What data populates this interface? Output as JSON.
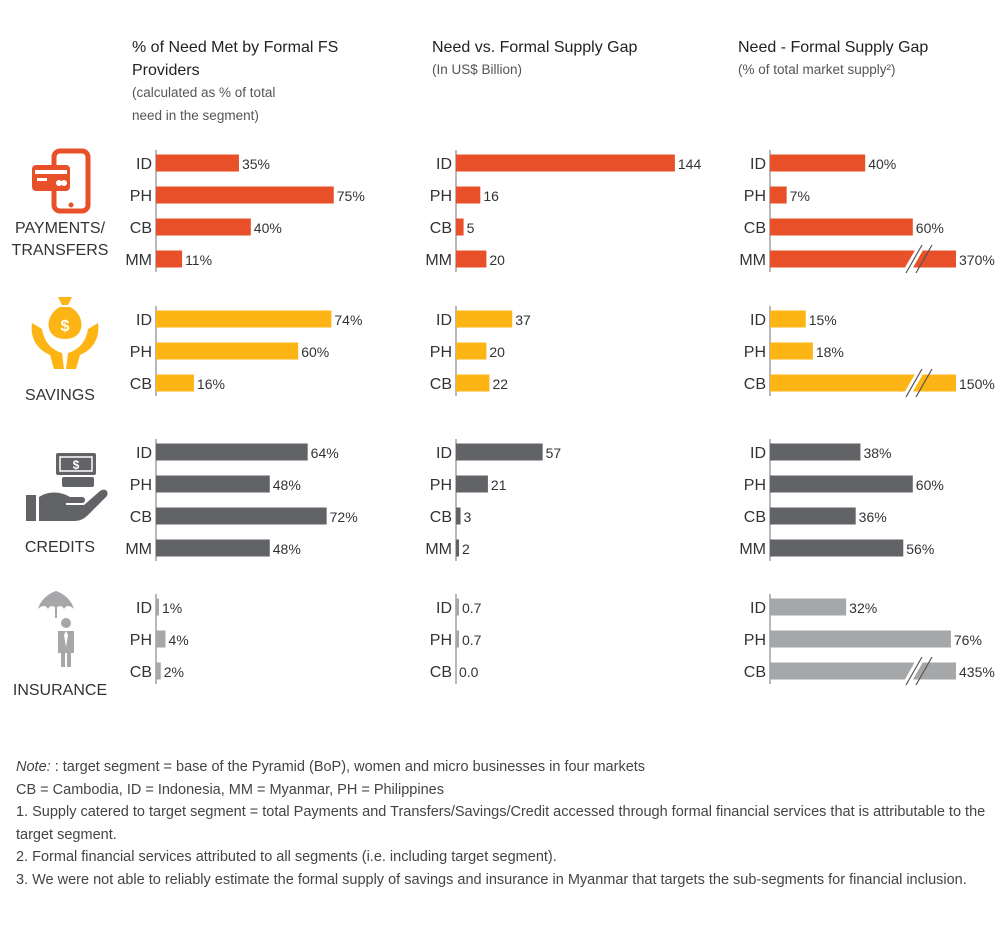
{
  "colors": {
    "payments": "#E8502A",
    "savings": "#FDB515",
    "credits": "#626366",
    "insurance": "#A6A7A9",
    "axis": "#888888",
    "break": "#ffffff"
  },
  "icons": {
    "payments": "mobile-payment-icon",
    "savings": "money-bag-hands-icon",
    "credits": "cash-hand-icon",
    "insurance": "umbrella-person-icon"
  },
  "columns": [
    {
      "title_lines": [
        "% of Need Met by Formal FS",
        "Providers"
      ],
      "subtitle_lines": [
        "(calculated as % of total",
        "need in the segment)"
      ]
    },
    {
      "title_lines": [
        "Need vs. Formal Supply Gap"
      ],
      "subtitle_lines": [
        "(In US$ Billion)"
      ]
    },
    {
      "title_lines": [
        "Need - Formal Supply Gap"
      ],
      "subtitle_lines": [
        "(% of total market supply²)"
      ]
    }
  ],
  "chart_data": {
    "type": "bar",
    "orientation": "horizontal",
    "legend": "none",
    "grid": false,
    "panels": [
      {
        "id": "payments",
        "category_lines": [
          "PAYMENTS/",
          "TRANSFERS"
        ],
        "rows": [
          "ID",
          "PH",
          "CB",
          "MM"
        ],
        "series": [
          {
            "values": [
              35,
              75,
              40,
              11
            ],
            "labels": [
              "35%",
              "75%",
              "40%",
              "11%"
            ]
          },
          {
            "values": [
              144,
              16,
              5,
              20
            ],
            "labels": [
              "144",
              "16",
              "5",
              "20"
            ]
          },
          {
            "values": [
              40,
              7,
              60,
              370
            ],
            "labels": [
              "40%",
              "7%",
              "60%",
              "370%"
            ],
            "broken": [
              false,
              false,
              false,
              true
            ]
          }
        ]
      },
      {
        "id": "savings",
        "category_lines": [
          "SAVINGS"
        ],
        "rows": [
          "ID",
          "PH",
          "CB"
        ],
        "series": [
          {
            "values": [
              74,
              60,
              16
            ],
            "labels": [
              "74%",
              "60%",
              "16%"
            ]
          },
          {
            "values": [
              37,
              20,
              22
            ],
            "labels": [
              "37",
              "20",
              "22"
            ]
          },
          {
            "values": [
              15,
              18,
              150
            ],
            "labels": [
              "15%",
              "18%",
              "150%"
            ],
            "broken": [
              false,
              false,
              true
            ]
          }
        ]
      },
      {
        "id": "credits",
        "category_lines": [
          "CREDITS"
        ],
        "rows": [
          "ID",
          "PH",
          "CB",
          "MM"
        ],
        "series": [
          {
            "values": [
              64,
              48,
              72,
              48
            ],
            "labels": [
              "64%",
              "48%",
              "72%",
              "48%"
            ]
          },
          {
            "values": [
              57,
              21,
              3,
              2
            ],
            "labels": [
              "57",
              "21",
              "3",
              "2"
            ]
          },
          {
            "values": [
              38,
              60,
              36,
              56
            ],
            "labels": [
              "38%",
              "60%",
              "36%",
              "56%"
            ]
          }
        ]
      },
      {
        "id": "insurance",
        "category_lines": [
          "INSURANCE"
        ],
        "rows": [
          "ID",
          "PH",
          "CB"
        ],
        "series": [
          {
            "values": [
              1,
              4,
              2
            ],
            "labels": [
              "1%",
              "4%",
              "2%"
            ]
          },
          {
            "values": [
              0.7,
              0.7,
              0.0
            ],
            "labels": [
              "0.7",
              "0.7",
              "0.0"
            ]
          },
          {
            "values": [
              32,
              76,
              435
            ],
            "labels": [
              "32%",
              "76%",
              "435%"
            ],
            "broken": [
              false,
              false,
              true
            ]
          }
        ]
      }
    ]
  },
  "notes": {
    "note_lead": "Note:",
    "note_text": ": target segment = base of the Pyramid (BoP), women and micro businesses in four markets",
    "lines": [
      "CB = Cambodia, ID = Indonesia, MM = Myanmar, PH = Philippines",
      "1. Supply catered to target segment = total Payments and Transfers/Savings/Credit accessed through formal financial services that is attributable to the target segment.",
      "2. Formal financial services attributed to all segments (i.e. including target segment).",
      "3. We were not able to reliably estimate the formal supply of savings and insurance in Myanmar that targets the sub-segments for financial inclusion."
    ]
  }
}
